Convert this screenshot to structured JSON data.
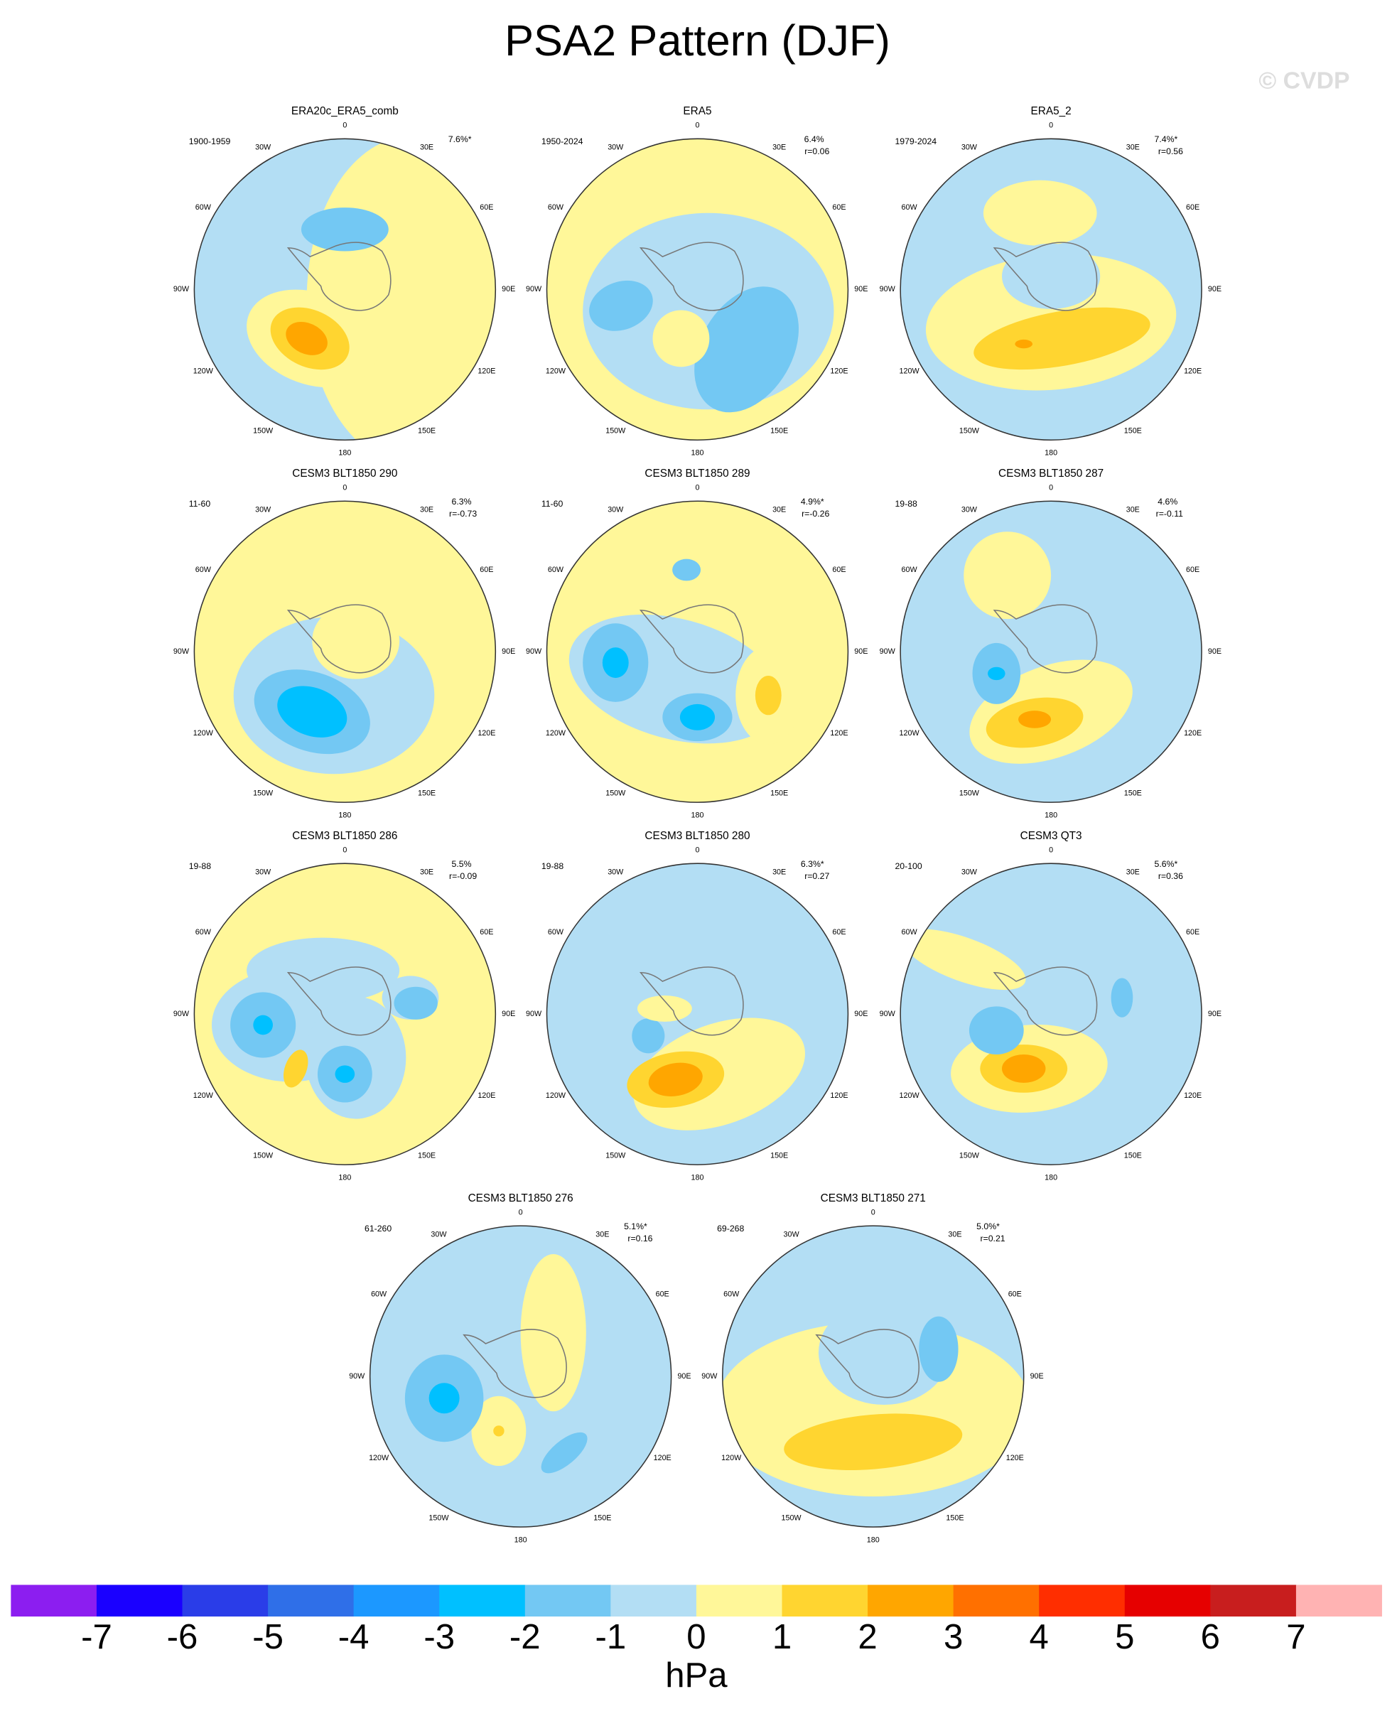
{
  "title": "PSA2 Pattern (DJF)",
  "watermark": "© CVDP",
  "lon_labels": [
    "0",
    "30E",
    "60E",
    "90E",
    "120E",
    "150E",
    "180",
    "150W",
    "120W",
    "90W",
    "60W",
    "30W"
  ],
  "panels": [
    {
      "title": "ERA20c_ERA5_comb",
      "period": "1900-1959",
      "pct": "7.6%*"
    },
    {
      "title": "ERA5",
      "period": "1950-2024",
      "pct": "6.4%",
      "r": "r=0.06"
    },
    {
      "title": "ERA5_2",
      "period": "1979-2024",
      "pct": "7.4%*",
      "r": "r=0.56"
    },
    {
      "title": "CESM3 BLT1850 290",
      "period": "11-60",
      "pct": "6.3%",
      "r": "r=-0.73"
    },
    {
      "title": "CESM3 BLT1850 289",
      "period": "11-60",
      "pct": "4.9%*",
      "r": "r=-0.26"
    },
    {
      "title": "CESM3 BLT1850 287",
      "period": "19-88",
      "pct": "4.6%",
      "r": "r=-0.11"
    },
    {
      "title": "CESM3 BLT1850 286",
      "period": "19-88",
      "pct": "5.5%",
      "r": "r=-0.09"
    },
    {
      "title": "CESM3 BLT1850 280",
      "period": "19-88",
      "pct": "6.3%*",
      "r": "r=0.27"
    },
    {
      "title": "CESM3 QT3",
      "period": "20-100",
      "pct": "5.6%*",
      "r": "r=0.36"
    },
    {
      "title": "CESM3 BLT1850 276",
      "period": "61-260",
      "pct": "5.1%*",
      "r": "r=0.16"
    },
    {
      "title": "CESM3 BLT1850 271",
      "period": "69-268",
      "pct": "5.0%*",
      "r": "r=0.21"
    }
  ],
  "colorbar": {
    "colors": [
      "#8c1ef0",
      "#1a00ff",
      "#2a3de8",
      "#2f6fe8",
      "#1c98ff",
      "#00c0ff",
      "#73c8f3",
      "#b3def4",
      "#fff799",
      "#ffd530",
      "#ffa600",
      "#ff7000",
      "#ff2e00",
      "#e60000",
      "#c81e1e",
      "#ffb3b3"
    ],
    "ticks": [
      -7,
      -6,
      -5,
      -4,
      -3,
      -2,
      -1,
      0,
      1,
      2,
      3,
      4,
      5,
      6,
      7
    ],
    "label": "hPa"
  }
}
